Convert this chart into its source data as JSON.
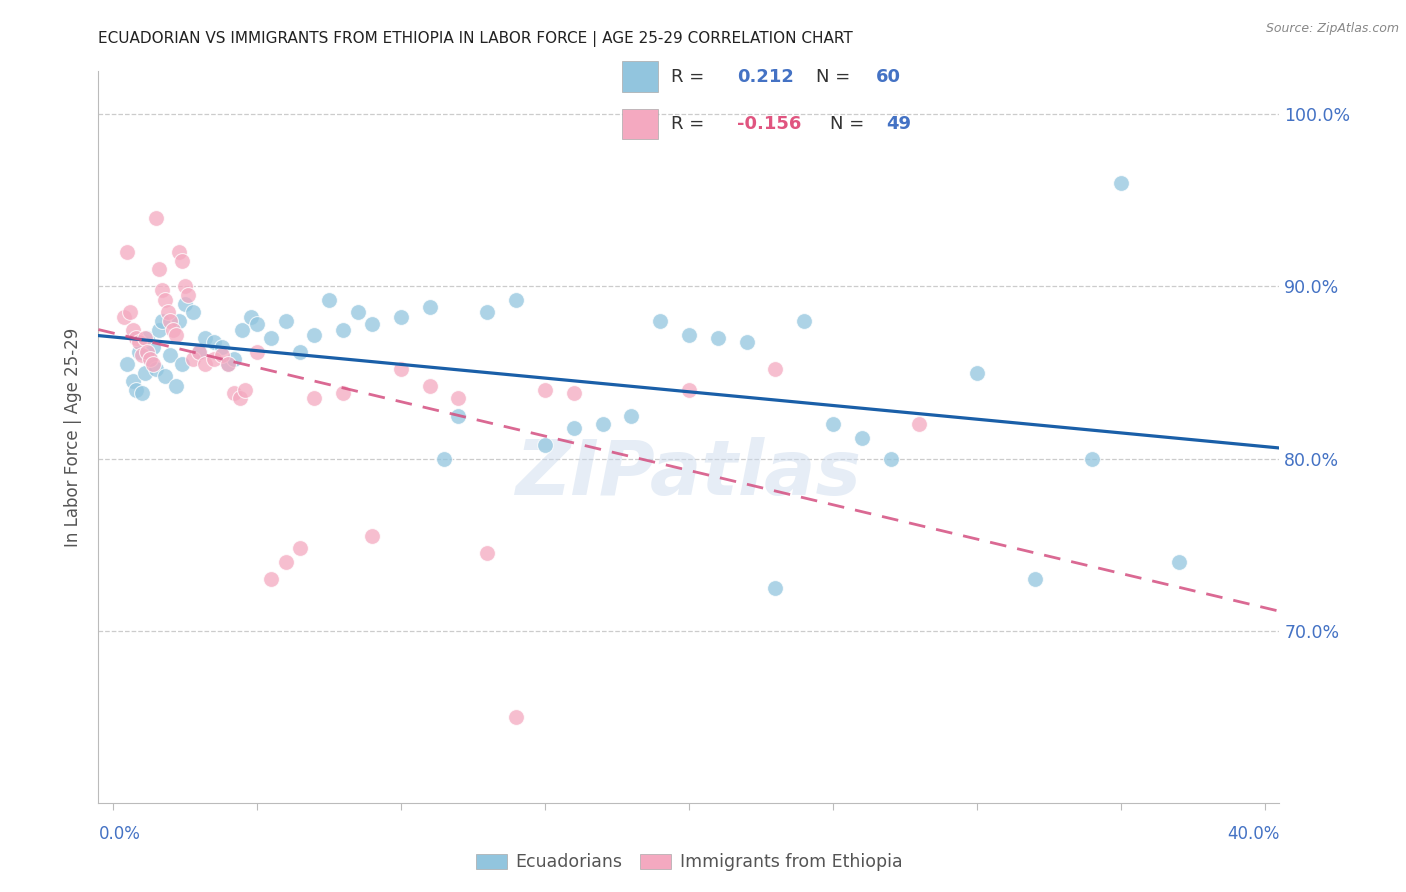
{
  "title": "ECUADORIAN VS IMMIGRANTS FROM ETHIOPIA IN LABOR FORCE | AGE 25-29 CORRELATION CHART",
  "source": "Source: ZipAtlas.com",
  "ylabel": "In Labor Force | Age 25-29",
  "blue_color": "#92c5de",
  "pink_color": "#f4a9c0",
  "blue_line_color": "#1a5fa8",
  "pink_line_color": "#d44f80",
  "watermark": "ZIPatlas",
  "r_blue": "0.212",
  "n_blue": "60",
  "r_pink": "-0.156",
  "n_pink": "49",
  "blue_scatter_x": [
    0.005,
    0.007,
    0.008,
    0.009,
    0.01,
    0.011,
    0.012,
    0.013,
    0.014,
    0.015,
    0.016,
    0.017,
    0.018,
    0.02,
    0.022,
    0.023,
    0.024,
    0.025,
    0.028,
    0.03,
    0.032,
    0.035,
    0.038,
    0.04,
    0.042,
    0.045,
    0.048,
    0.05,
    0.055,
    0.06,
    0.065,
    0.07,
    0.075,
    0.08,
    0.085,
    0.09,
    0.1,
    0.11,
    0.115,
    0.12,
    0.13,
    0.14,
    0.15,
    0.16,
    0.17,
    0.18,
    0.19,
    0.2,
    0.21,
    0.22,
    0.23,
    0.24,
    0.25,
    0.26,
    0.27,
    0.3,
    0.32,
    0.34,
    0.35,
    0.37
  ],
  "blue_scatter_y": [
    0.855,
    0.845,
    0.84,
    0.862,
    0.838,
    0.85,
    0.87,
    0.858,
    0.865,
    0.852,
    0.875,
    0.88,
    0.848,
    0.86,
    0.842,
    0.88,
    0.855,
    0.89,
    0.885,
    0.862,
    0.87,
    0.868,
    0.865,
    0.855,
    0.858,
    0.875,
    0.882,
    0.878,
    0.87,
    0.88,
    0.862,
    0.872,
    0.892,
    0.875,
    0.885,
    0.878,
    0.882,
    0.888,
    0.8,
    0.825,
    0.885,
    0.892,
    0.808,
    0.818,
    0.82,
    0.825,
    0.88,
    0.872,
    0.87,
    0.868,
    0.725,
    0.88,
    0.82,
    0.812,
    0.8,
    0.85,
    0.73,
    0.8,
    0.96,
    0.74
  ],
  "pink_scatter_x": [
    0.004,
    0.005,
    0.006,
    0.007,
    0.008,
    0.009,
    0.01,
    0.011,
    0.012,
    0.013,
    0.014,
    0.015,
    0.016,
    0.017,
    0.018,
    0.019,
    0.02,
    0.021,
    0.022,
    0.023,
    0.024,
    0.025,
    0.026,
    0.028,
    0.03,
    0.032,
    0.035,
    0.038,
    0.04,
    0.042,
    0.044,
    0.046,
    0.05,
    0.055,
    0.06,
    0.065,
    0.07,
    0.08,
    0.09,
    0.1,
    0.11,
    0.12,
    0.13,
    0.14,
    0.15,
    0.16,
    0.2,
    0.23,
    0.28
  ],
  "pink_scatter_y": [
    0.882,
    0.92,
    0.885,
    0.875,
    0.87,
    0.868,
    0.86,
    0.87,
    0.862,
    0.858,
    0.855,
    0.94,
    0.91,
    0.898,
    0.892,
    0.885,
    0.88,
    0.875,
    0.872,
    0.92,
    0.915,
    0.9,
    0.895,
    0.858,
    0.862,
    0.855,
    0.858,
    0.86,
    0.855,
    0.838,
    0.835,
    0.84,
    0.862,
    0.73,
    0.74,
    0.748,
    0.835,
    0.838,
    0.755,
    0.852,
    0.842,
    0.835,
    0.745,
    0.65,
    0.84,
    0.838,
    0.84,
    0.852,
    0.82
  ],
  "x_min": -0.005,
  "x_max": 0.405,
  "y_min": 0.6,
  "y_max": 1.025,
  "yticks": [
    0.7,
    0.8,
    0.9,
    1.0
  ],
  "ytick_labels": [
    "70.0%",
    "80.0%",
    "90.0%",
    "100.0%"
  ]
}
